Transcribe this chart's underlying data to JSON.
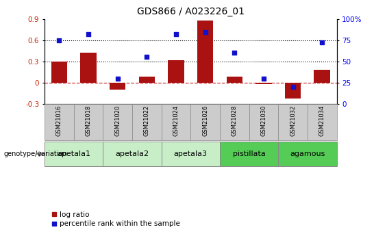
{
  "title": "GDS866 / A023226_01",
  "samples": [
    "GSM21016",
    "GSM21018",
    "GSM21020",
    "GSM21022",
    "GSM21024",
    "GSM21026",
    "GSM21028",
    "GSM21030",
    "GSM21032",
    "GSM21034"
  ],
  "log_ratio": [
    0.3,
    0.42,
    -0.1,
    0.08,
    0.32,
    0.88,
    0.08,
    -0.02,
    -0.22,
    0.18
  ],
  "percentile_rank": [
    75,
    82,
    30,
    55,
    82,
    84,
    60,
    30,
    20,
    72
  ],
  "group_spans": [
    {
      "name": "apetala1",
      "start": 0,
      "end": 1,
      "color": "#c8eec8"
    },
    {
      "name": "apetala2",
      "start": 2,
      "end": 3,
      "color": "#c8eec8"
    },
    {
      "name": "apetala3",
      "start": 4,
      "end": 5,
      "color": "#c8eec8"
    },
    {
      "name": "pistillata",
      "start": 6,
      "end": 7,
      "color": "#55cc55"
    },
    {
      "name": "agamous",
      "start": 8,
      "end": 9,
      "color": "#55cc55"
    }
  ],
  "ylim_left": [
    -0.3,
    0.9
  ],
  "ylim_right": [
    0,
    100
  ],
  "yticks_left": [
    -0.3,
    0.0,
    0.3,
    0.6,
    0.9
  ],
  "ytick_labels_left": [
    "-0.3",
    "0",
    "0.3",
    "0.6",
    "0.9"
  ],
  "yticks_right": [
    0,
    25,
    50,
    75,
    100
  ],
  "ytick_labels_right": [
    "0",
    "25",
    "50",
    "75",
    "100%"
  ],
  "hlines": [
    0.3,
    0.6
  ],
  "bar_color": "#aa1111",
  "dot_color": "#1111cc",
  "zero_line_color": "#cc3333",
  "bar_width": 0.55,
  "sample_box_color": "#cccccc",
  "genotype_label": "genotype/variation",
  "legend_bar": "log ratio",
  "legend_dot": "percentile rank within the sample"
}
